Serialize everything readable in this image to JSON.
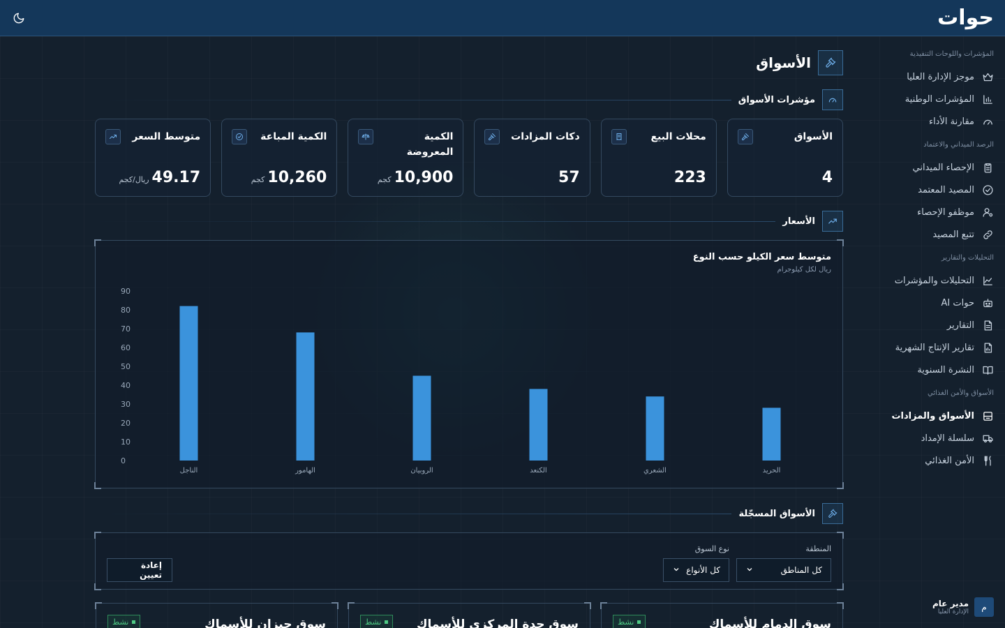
{
  "app": {
    "logo": "حوات"
  },
  "sidebar": {
    "groups": [
      {
        "title": "المؤشرات واللوحات التنفيذية",
        "items": [
          {
            "label": "موجز الإدارة العليا",
            "icon": "crown-icon"
          },
          {
            "label": "المؤشرات الوطنية",
            "icon": "bar-chart-icon"
          },
          {
            "label": "مقارنة الأداء",
            "icon": "gauge-icon"
          }
        ]
      },
      {
        "title": "الرصد الميداني والاعتماد",
        "items": [
          {
            "label": "الإحصاء الميداني",
            "icon": "clipboard-icon"
          },
          {
            "label": "المصيد المعتمد",
            "icon": "check-circle-icon"
          },
          {
            "label": "موظفو الإحصاء",
            "icon": "user-cog-icon"
          },
          {
            "label": "تتبع المصيد",
            "icon": "link-icon"
          }
        ]
      },
      {
        "title": "التحليلات والتقارير",
        "items": [
          {
            "label": "التحليلات والمؤشرات",
            "icon": "line-chart-icon"
          },
          {
            "label": "حوات AI",
            "icon": "robot-icon"
          },
          {
            "label": "التقارير",
            "icon": "file-text-icon"
          },
          {
            "label": "تقارير الإنتاج الشهرية",
            "icon": "file-chart-icon"
          },
          {
            "label": "النشرة السنوية",
            "icon": "book-open-icon"
          }
        ]
      },
      {
        "title": "الأسواق والأمن الغذائي",
        "items": [
          {
            "label": "الأسواق والمزادات",
            "icon": "store-icon",
            "active": true
          },
          {
            "label": "سلسلة الإمداد",
            "icon": "truck-icon"
          },
          {
            "label": "الأمن الغذائي",
            "icon": "utensils-icon"
          }
        ]
      }
    ],
    "user": {
      "avatar": "م",
      "name": "مدير عام",
      "role": "الإدارة العليا"
    }
  },
  "page": {
    "title": "الأسواق",
    "sections": {
      "indicators": "مؤشرات الأسواق",
      "prices": "الأسعار",
      "registered": "الأسواق المسجّلة"
    }
  },
  "kpis": [
    {
      "label": "الأسواق",
      "value": "4",
      "unit": "",
      "icon": "gavel-icon"
    },
    {
      "label": "محلات البيع",
      "value": "223",
      "unit": "",
      "icon": "receipt-icon"
    },
    {
      "label": "دكات المزادات",
      "value": "57",
      "unit": "",
      "icon": "gavel-icon"
    },
    {
      "label": "الكمية المعروضة",
      "value": "10,900",
      "unit": "كجم",
      "icon": "scale-icon"
    },
    {
      "label": "الكمية المباعة",
      "value": "10,260",
      "unit": "كجم",
      "icon": "check-circle-icon"
    },
    {
      "label": "متوسط السعر",
      "value": "49.17",
      "unit": "ريال/كجم",
      "icon": "trend-up-icon"
    }
  ],
  "chart_data": {
    "type": "bar",
    "title": "متوسط سعر الكيلو حسب النوع",
    "subtitle": "ريال لكل كيلوجرام",
    "categories": [
      "الحريد",
      "الشعري",
      "الكنعد",
      "الروبيان",
      "الهامور",
      "الناجل"
    ],
    "values": [
      28,
      34,
      38,
      45,
      68,
      82
    ],
    "ylim": [
      0,
      90
    ],
    "yticks": [
      0,
      10,
      20,
      30,
      40,
      50,
      60,
      70,
      80,
      90
    ],
    "color": "#3b93dc"
  },
  "filters": {
    "region_label": "المنطقة",
    "region_value": "كل المناطق",
    "type_label": "نوع السوق",
    "type_value": "كل الأنواع",
    "reset_label": "إعادة تعيين"
  },
  "markets": [
    {
      "name": "سوق الدمام للأسماك",
      "status": "نشط"
    },
    {
      "name": "سوق جدة المركزي للأسماك",
      "status": "نشط"
    },
    {
      "name": "سوق جيزان للأسماك",
      "status": "نشط"
    }
  ],
  "colors": {
    "topbar": "#14375a",
    "accent": "#3b93dc",
    "active_badge": "#4ecb84"
  }
}
